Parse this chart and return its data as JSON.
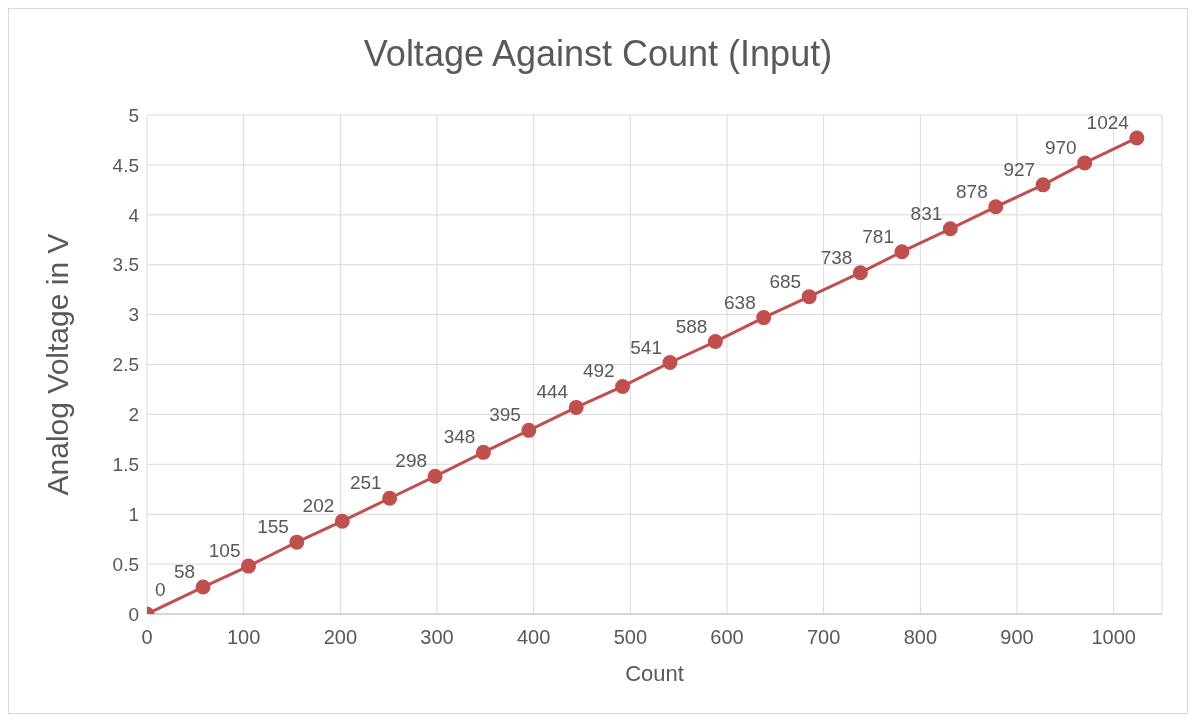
{
  "chart_data": {
    "type": "line",
    "title": "Voltage Against Count (Input)",
    "xlabel": "Count",
    "ylabel": "Analog Voltage in V",
    "x": [
      0,
      58,
      105,
      155,
      202,
      251,
      298,
      348,
      395,
      444,
      492,
      541,
      588,
      638,
      685,
      738,
      781,
      831,
      878,
      927,
      970,
      1024
    ],
    "series": [
      {
        "color": "#c0504d",
        "values": [
          0,
          0.27,
          0.48,
          0.72,
          0.93,
          1.16,
          1.38,
          1.62,
          1.84,
          2.07,
          2.28,
          2.52,
          2.73,
          2.97,
          3.18,
          3.42,
          3.63,
          3.86,
          4.08,
          4.3,
          4.52,
          4.77
        ]
      }
    ],
    "annotations": [
      {
        "text": "0",
        "x": 0,
        "y": 0
      },
      {
        "text": "58",
        "x": 58,
        "y": 0.27
      },
      {
        "text": "105",
        "x": 105,
        "y": 0.48
      },
      {
        "text": "155",
        "x": 155,
        "y": 0.72
      },
      {
        "text": "202",
        "x": 202,
        "y": 0.93
      },
      {
        "text": "251",
        "x": 251,
        "y": 1.16
      },
      {
        "text": "298",
        "x": 298,
        "y": 1.38
      },
      {
        "text": "348",
        "x": 348,
        "y": 1.62
      },
      {
        "text": "395",
        "x": 395,
        "y": 1.84
      },
      {
        "text": "444",
        "x": 444,
        "y": 2.07
      },
      {
        "text": "492",
        "x": 492,
        "y": 2.28
      },
      {
        "text": "541",
        "x": 541,
        "y": 2.52
      },
      {
        "text": "588",
        "x": 588,
        "y": 2.73
      },
      {
        "text": "638",
        "x": 638,
        "y": 2.97
      },
      {
        "text": "685",
        "x": 685,
        "y": 3.18
      },
      {
        "text": "738",
        "x": 738,
        "y": 3.42
      },
      {
        "text": "781",
        "x": 781,
        "y": 3.63
      },
      {
        "text": "831",
        "x": 831,
        "y": 3.86
      },
      {
        "text": "878",
        "x": 878,
        "y": 4.08
      },
      {
        "text": "927",
        "x": 927,
        "y": 4.3
      },
      {
        "text": "970",
        "x": 970,
        "y": 4.52
      },
      {
        "text": "1024",
        "x": 1024,
        "y": 4.77
      }
    ],
    "xlim": [
      0,
      1050
    ],
    "xticks": [
      0,
      100,
      200,
      300,
      400,
      500,
      600,
      700,
      800,
      900,
      1000
    ],
    "ylim": [
      0,
      5
    ],
    "yticks": [
      0,
      0.5,
      1,
      1.5,
      2,
      2.5,
      3,
      3.5,
      4,
      4.5,
      5
    ],
    "grid": true,
    "legend": false,
    "marker": "circle",
    "line_style": "solid"
  }
}
